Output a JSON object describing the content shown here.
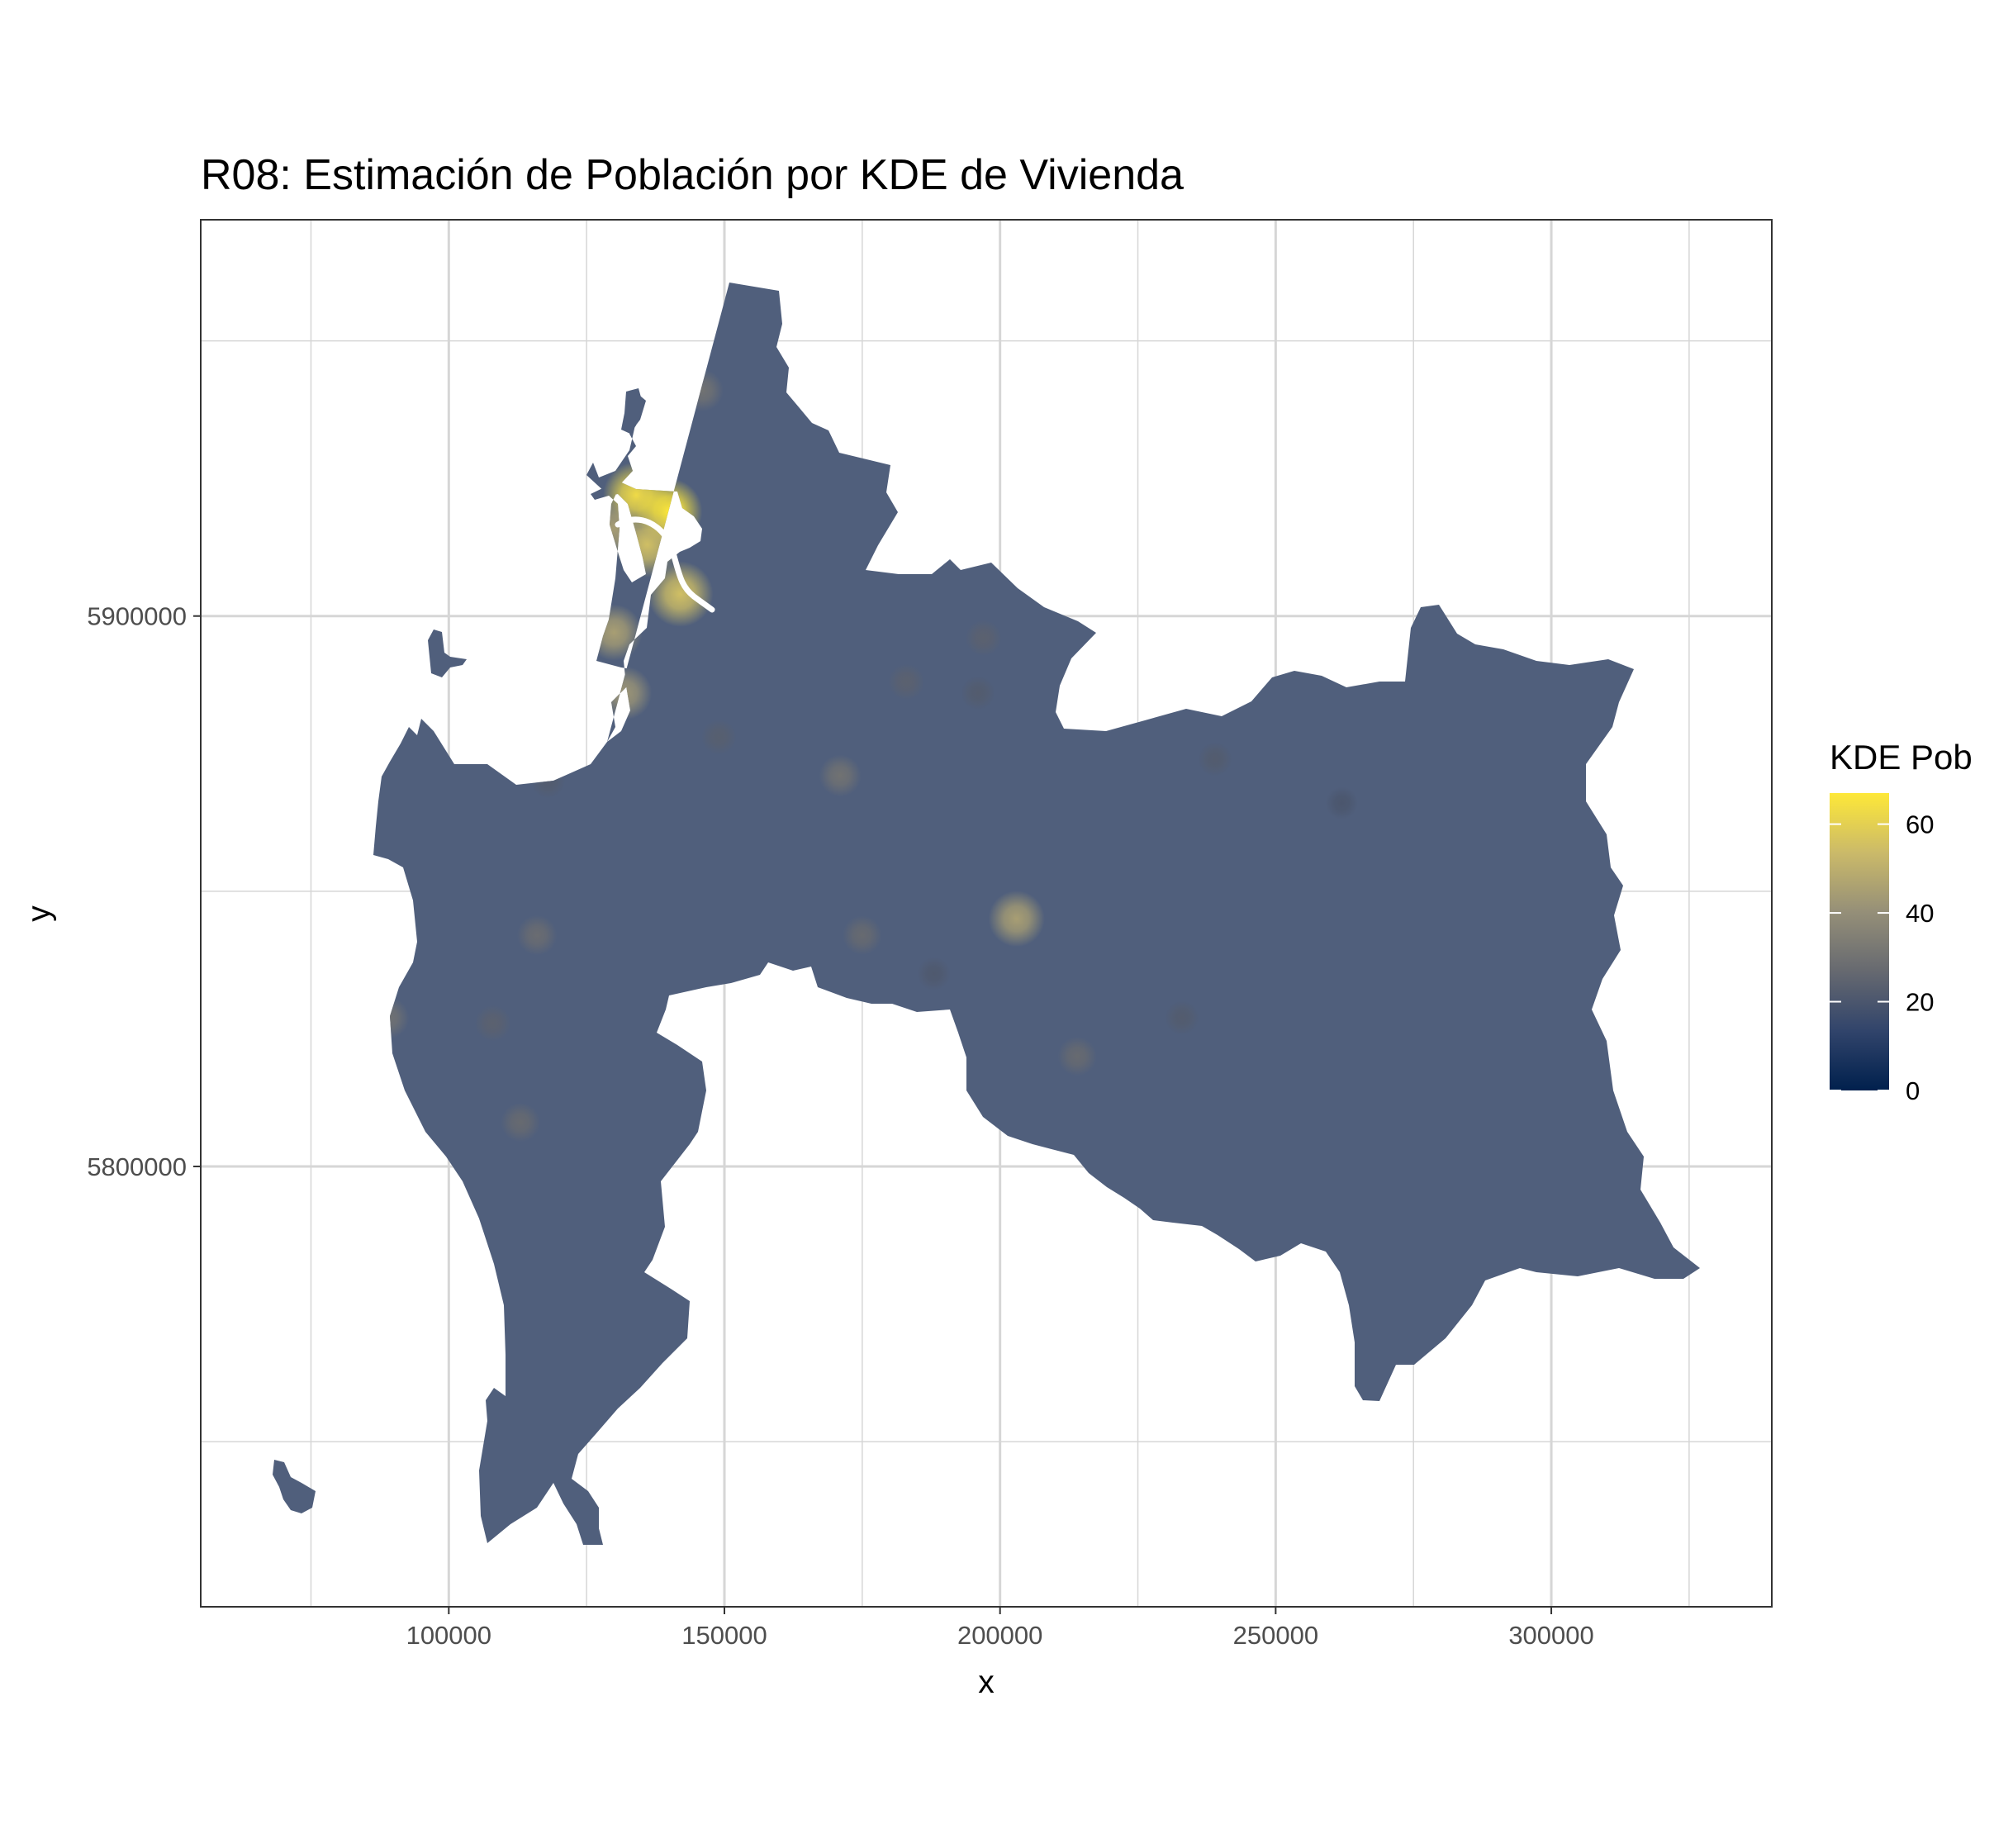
{
  "chart_data": {
    "type": "heatmap",
    "title": "R08: Estimación de Población por KDE de Vivienda",
    "xlabel": "x",
    "ylabel": "y",
    "x_ticks": [
      100000,
      150000,
      200000,
      250000,
      300000
    ],
    "y_ticks": [
      5800000,
      5900000
    ],
    "xlim": [
      55000,
      340000
    ],
    "ylim": [
      5720000,
      5972000
    ],
    "grid": true,
    "legend": {
      "title": "KDE Pob",
      "position": "right",
      "ticks": [
        0,
        20,
        40,
        60
      ],
      "range": [
        0,
        67
      ],
      "colors": [
        "#00204d",
        "#31446b",
        "#666970",
        "#958f78",
        "#cbba69",
        "#fee838"
      ]
    },
    "region_base_value": 17,
    "hotspots": [
      {
        "x": 134000,
        "y": 5922000,
        "value": 63
      },
      {
        "x": 140000,
        "y": 5919000,
        "value": 67
      },
      {
        "x": 136000,
        "y": 5913000,
        "value": 55
      },
      {
        "x": 130000,
        "y": 5916000,
        "value": 45
      },
      {
        "x": 142000,
        "y": 5904000,
        "value": 55
      },
      {
        "x": 130000,
        "y": 5897000,
        "value": 45
      },
      {
        "x": 132000,
        "y": 5886000,
        "value": 42
      },
      {
        "x": 146000,
        "y": 5941000,
        "value": 30
      },
      {
        "x": 171000,
        "y": 5871000,
        "value": 30
      },
      {
        "x": 203000,
        "y": 5845000,
        "value": 45
      },
      {
        "x": 116000,
        "y": 5842000,
        "value": 28
      },
      {
        "x": 175000,
        "y": 5842000,
        "value": 27
      },
      {
        "x": 89000,
        "y": 5827000,
        "value": 30
      },
      {
        "x": 108000,
        "y": 5826000,
        "value": 24
      },
      {
        "x": 214000,
        "y": 5820000,
        "value": 27
      },
      {
        "x": 113000,
        "y": 5808000,
        "value": 27
      },
      {
        "x": 183000,
        "y": 5888000,
        "value": 24
      },
      {
        "x": 197000,
        "y": 5896000,
        "value": 24
      },
      {
        "x": 196000,
        "y": 5886000,
        "value": 22
      },
      {
        "x": 149000,
        "y": 5878000,
        "value": 23
      },
      {
        "x": 118000,
        "y": 5870000,
        "value": 22
      },
      {
        "x": 239000,
        "y": 5874000,
        "value": 22
      },
      {
        "x": 233000,
        "y": 5827000,
        "value": 22
      },
      {
        "x": 188000,
        "y": 5835000,
        "value": 21
      },
      {
        "x": 262000,
        "y": 5866000,
        "value": 20
      }
    ]
  }
}
